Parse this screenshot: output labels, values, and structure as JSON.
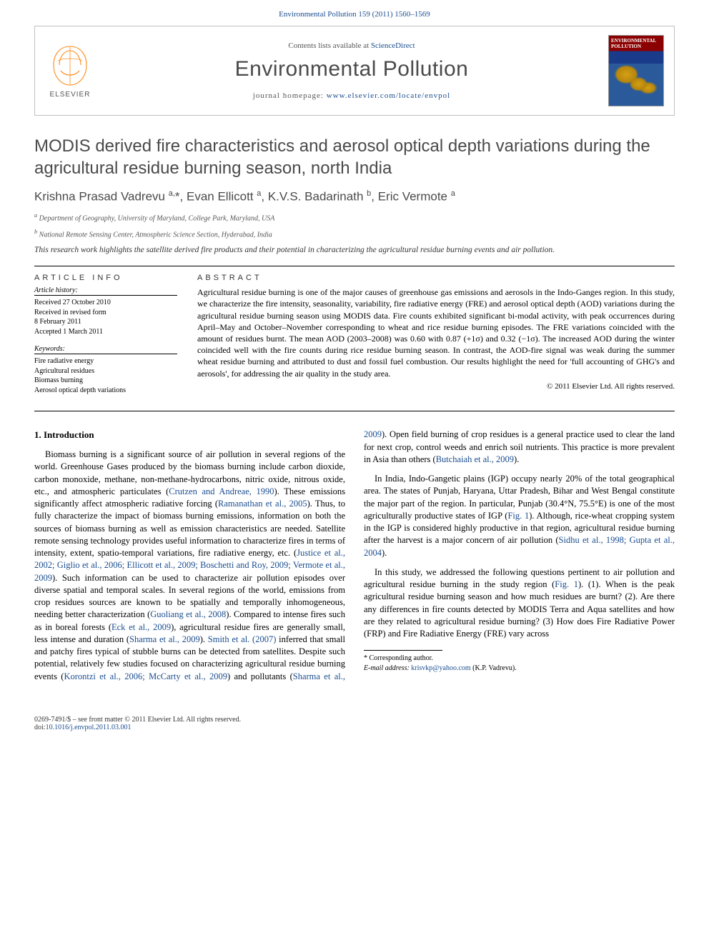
{
  "header": {
    "reference": "Environmental Pollution 159 (2011) 1560–1569"
  },
  "masthead": {
    "contents_prefix": "Contents lists available at ",
    "contents_link": "ScienceDirect",
    "journal_name": "Environmental Pollution",
    "homepage_prefix": "journal homepage: ",
    "homepage_url": "www.elsevier.com/locate/envpol",
    "cover_title": "ENVIRONMENTAL POLLUTION",
    "elsevier_label": "ELSEVIER",
    "elsevier_color": "#ff8c1a",
    "elsevier_text_color": "#555555"
  },
  "article": {
    "title": "MODIS derived fire characteristics and aerosol optical depth variations during the agricultural residue burning season, north India",
    "authors_html": "Krishna Prasad Vadrevu <sup>a,</sup>*, Evan Ellicott <sup>a</sup>, K.V.S. Badarinath <sup>b</sup>, Eric Vermote <sup>a</sup>",
    "affiliations": [
      "a Department of Geography, University of Maryland, College Park, Maryland, USA",
      "b National Remote Sensing Center, Atmospheric Science Section, Hyderabad, India"
    ],
    "highlight": "This research work highlights the satellite derived fire products and their potential in characterizing the agricultural residue burning events and air pollution."
  },
  "info": {
    "heading": "ARTICLE INFO",
    "history_label": "Article history:",
    "history_lines": [
      "Received 27 October 2010",
      "Received in revised form",
      "8 February 2011",
      "Accepted 1 March 2011"
    ],
    "keywords_label": "Keywords:",
    "keywords": [
      "Fire radiative energy",
      "Agricultural residues",
      "Biomass burning",
      "Aerosol optical depth variations"
    ]
  },
  "abstract": {
    "heading": "ABSTRACT",
    "text": "Agricultural residue burning is one of the major causes of greenhouse gas emissions and aerosols in the Indo-Ganges region. In this study, we characterize the fire intensity, seasonality, variability, fire radiative energy (FRE) and aerosol optical depth (AOD) variations during the agricultural residue burning season using MODIS data. Fire counts exhibited significant bi-modal activity, with peak occurrences during April–May and October–November corresponding to wheat and rice residue burning episodes. The FRE variations coincided with the amount of residues burnt. The mean AOD (2003–2008) was 0.60 with 0.87 (+1σ) and 0.32 (−1σ). The increased AOD during the winter coincided well with the fire counts during rice residue burning season. In contrast, the AOD-fire signal was weak during the summer wheat residue burning and attributed to dust and fossil fuel combustion. Our results highlight the need for 'full accounting of GHG's and aerosols', for addressing the air quality in the study area.",
    "copyright": "© 2011 Elsevier Ltd. All rights reserved."
  },
  "body": {
    "section_heading": "1. Introduction",
    "p1_pre": "Biomass burning is a significant source of air pollution in several regions of the world. Greenhouse Gases produced by the biomass burning include carbon dioxide, carbon monoxide, methane, non-methane-hydrocarbons, nitric oxide, nitrous oxide, etc., and atmospheric particulates (",
    "p1_ref1": "Crutzen and Andreae, 1990",
    "p1_mid1": "). These emissions significantly affect atmospheric radiative forcing (",
    "p1_ref2": "Ramanathan et al., 2005",
    "p1_mid2": "). Thus, to fully characterize the impact of biomass burning emissions, information on both the sources of biomass burning as well as emission characteristics are needed. Satellite remote sensing technology provides useful information to characterize fires in terms of intensity, extent, spatio-temporal variations, fire radiative energy, etc. (",
    "p1_ref3": "Justice et al., 2002; Giglio et al., 2006; Ellicott et al., 2009; Boschetti and Roy, 2009; Vermote et al., 2009",
    "p1_mid3": "). Such information can be used to characterize air pollution episodes over diverse spatial and temporal scales. In several regions of the world, emissions from crop residues sources are known to be spatially and temporally inhomogeneous, needing better characterization (",
    "p1_ref4": "Guoliang et al., 2008",
    "p1_mid4": "). Compared to intense fires such as in boreal forests (",
    "p1_ref5": "Eck et al., 2009",
    "p1_post": "), agricultural residue fires are generally small, less intense and duration (",
    "p2_ref1": "Sharma et al., 2009",
    "p2_mid1": "). ",
    "p2_ref2": "Smith et al. (2007)",
    "p2_mid2": " inferred that small and patchy fires typical of stubble burns can be detected from satellites. Despite such potential, relatively few studies focused on characterizing agricultural residue burning events (",
    "p2_ref3": "Korontzi et al., 2006; McCarty et al., 2009",
    "p2_mid3": ") and pollutants (",
    "p2_ref4": "Sharma et al., 2009",
    "p2_mid4": "). Open field burning of crop residues is a general practice used to clear the land for next crop, control weeds and enrich soil nutrients. This practice is more prevalent in Asia than others (",
    "p2_ref5": "Butchaiah et al., 2009",
    "p2_post": ").",
    "p3_pre": "In India, Indo-Gangetic plains (IGP) occupy nearly 20% of the total geographical area. The states of Punjab, Haryana, Uttar Pradesh, Bihar and West Bengal constitute the major part of the region. In particular, Punjab (30.4°N, 75.5°E) is one of the most agriculturally productive states of IGP (",
    "p3_ref1": "Fig. 1",
    "p3_mid1": "). Although, rice-wheat cropping system in the IGP is considered highly productive in that region, agricultural residue burning after the harvest is a major concern of air pollution (",
    "p3_ref2": "Sidhu et al., 1998; Gupta et al., 2004",
    "p3_post": ").",
    "p4_pre": "In this study, we addressed the following questions pertinent to air pollution and agricultural residue burning in the study region (",
    "p4_ref1": "Fig. 1",
    "p4_post": "). (1). When is the peak agricultural residue burning season and how much residues are burnt? (2). Are there any differences in fire counts detected by MODIS Terra and Aqua satellites and how are they related to agricultural residue burning? (3) How does Fire Radiative Power (FRP) and Fire Radiative Energy (FRE) vary across"
  },
  "footnotes": {
    "corr_label": "* Corresponding author.",
    "email_label": "E-mail address: ",
    "email": "krisvkp@yahoo.com",
    "email_suffix": " (K.P. Vadrevu)."
  },
  "footer": {
    "issn_line": "0269-7491/$ – see front matter © 2011 Elsevier Ltd. All rights reserved.",
    "doi_label": "doi:",
    "doi": "10.1016/j.envpol.2011.03.001"
  },
  "colors": {
    "link": "#1a4d8f",
    "heading_gray": "#4a4a4a",
    "text": "#000000"
  }
}
